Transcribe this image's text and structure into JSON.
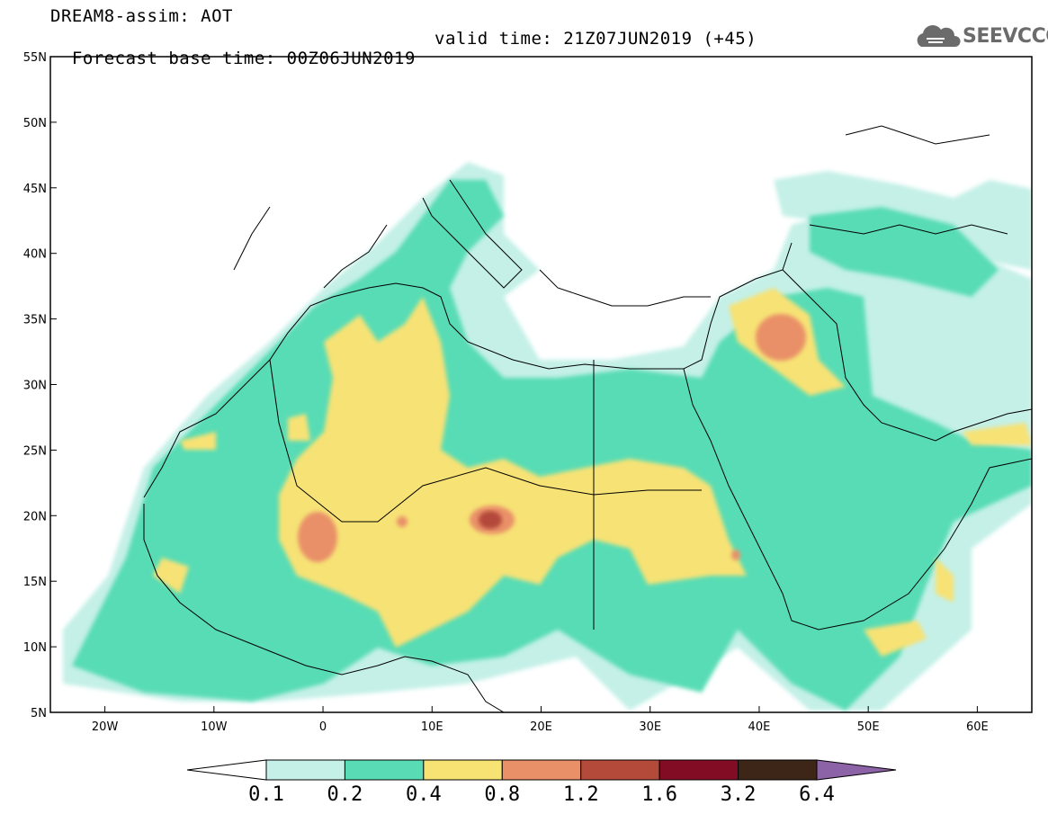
{
  "header": {
    "line1": "DREAM8-assim: AOT",
    "base_time": "Forecast base time: 00Z06JUN2019",
    "valid_time": "valid time: 21Z07JUN2019 (+45)"
  },
  "logo": {
    "text": "SEEVCCC",
    "icon": "cloud-icon"
  },
  "map": {
    "lon_range": [
      -25,
      65
    ],
    "lat_range": [
      5,
      55
    ],
    "lat_ticks": [
      "5N",
      "10N",
      "15N",
      "20N",
      "25N",
      "30N",
      "35N",
      "40N",
      "45N",
      "50N",
      "55N"
    ],
    "lon_ticks": [
      "20W",
      "10W",
      "0",
      "10E",
      "20E",
      "30E",
      "40E",
      "50E",
      "60E"
    ]
  },
  "colorbar": {
    "labels": [
      "0.1",
      "0.2",
      "0.4",
      "0.8",
      "1.2",
      "1.6",
      "3.2",
      "6.4"
    ],
    "colors": [
      "#ffffff",
      "#c4f0e7",
      "#59dcb5",
      "#f7e274",
      "#e99068",
      "#b44a3a",
      "#820c24",
      "#3d2617",
      "#8c63a6"
    ]
  }
}
